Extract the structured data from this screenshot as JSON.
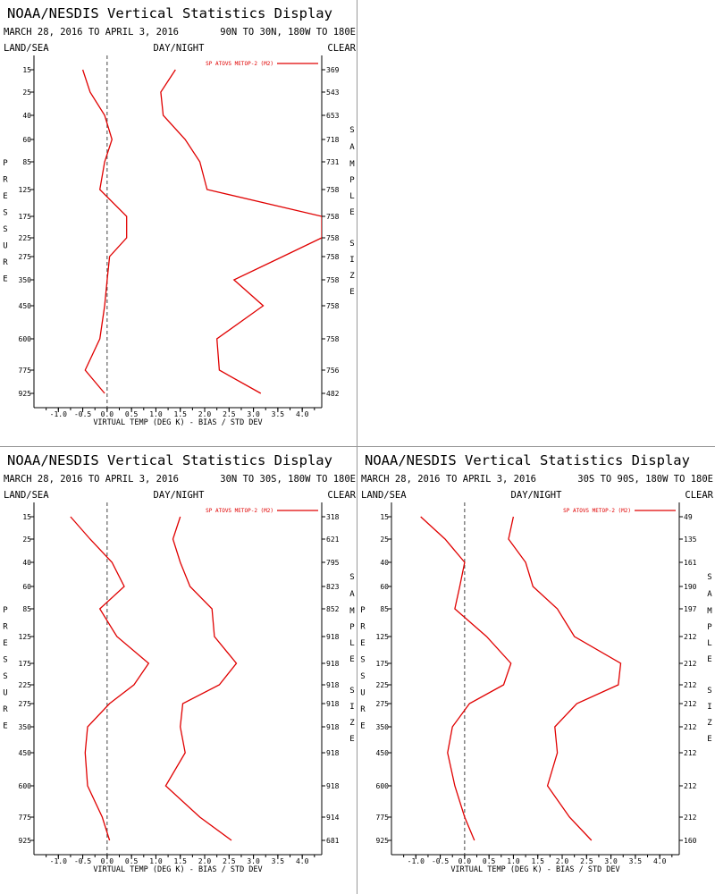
{
  "header": {
    "title": "NOAA/NESDIS Vertical Statistics Display",
    "left_label": "LAND/SEA",
    "center_label": "DAY/NIGHT",
    "right_label": "CLEAR",
    "y_axis_title": "PRESSURE",
    "right_axis_title": "SAMPLE SIZE",
    "x_axis_title": "VIRTUAL TEMP (DEG K) - BIAS / STD DEV"
  },
  "colors": {
    "series": "#e00000",
    "axis": "#000000",
    "zero_line": "#444444"
  },
  "chart_data": [
    {
      "type": "line",
      "date_range": "MARCH 28, 2016 TO APRIL 3, 2016",
      "region": "90N TO 30N, 180W TO 180E",
      "pressure_levels": [
        "15",
        "25",
        "40",
        "60",
        "85",
        "125",
        "175",
        "225",
        "275",
        "350",
        "450",
        "600",
        "775",
        "925"
      ],
      "x_ticks": [
        "-1.0",
        "-0.5",
        "0.0",
        "0.5",
        "1.0",
        "1.5",
        "2.0",
        "2.5",
        "3.0",
        "3.5",
        "4.0"
      ],
      "xlim": [
        -1.5,
        4.4
      ],
      "series": [
        {
          "name": "SP ATOVS METOP-2 (M2)",
          "kind": "bias",
          "values": [
            -0.5,
            -0.35,
            -0.05,
            0.1,
            -0.05,
            -0.15,
            0.4,
            0.4,
            0.05,
            0.0,
            -0.05,
            -0.15,
            -0.45,
            -0.05
          ]
        },
        {
          "name": "",
          "kind": "std_dev",
          "values": [
            1.4,
            1.1,
            1.15,
            1.6,
            1.9,
            2.05,
            4.4,
            4.4,
            3.6,
            2.6,
            3.2,
            2.25,
            2.3,
            3.15
          ]
        }
      ],
      "sample_size": [
        "369",
        "543",
        "653",
        "718",
        "731",
        "758",
        "758",
        "758",
        "758",
        "758",
        "758",
        "758",
        "756",
        "482"
      ]
    },
    {
      "type": "line",
      "date_range": "MARCH 28, 2016 TO APRIL 3, 2016",
      "region": "30N TO 30S, 180W TO 180E",
      "pressure_levels": [
        "15",
        "25",
        "40",
        "60",
        "85",
        "125",
        "175",
        "225",
        "275",
        "350",
        "450",
        "600",
        "775",
        "925"
      ],
      "x_ticks": [
        "-1.0",
        "-0.5",
        "0.0",
        "0.5",
        "1.0",
        "1.5",
        "2.0",
        "2.5",
        "3.0",
        "3.5",
        "4.0"
      ],
      "xlim": [
        -1.5,
        4.4
      ],
      "series": [
        {
          "name": "SP ATOVS METOP-2 (M2)",
          "kind": "bias",
          "values": [
            -0.75,
            -0.35,
            0.1,
            0.35,
            -0.15,
            0.2,
            0.85,
            0.55,
            0.05,
            -0.4,
            -0.45,
            -0.4,
            -0.1,
            0.05
          ]
        },
        {
          "name": "",
          "kind": "std_dev",
          "values": [
            1.5,
            1.35,
            1.5,
            1.7,
            2.15,
            2.2,
            2.65,
            2.3,
            1.55,
            1.5,
            1.6,
            1.2,
            1.9,
            2.55
          ]
        }
      ],
      "sample_size": [
        "318",
        "621",
        "795",
        "823",
        "852",
        "918",
        "918",
        "918",
        "918",
        "918",
        "918",
        "918",
        "914",
        "681"
      ]
    },
    {
      "type": "line",
      "date_range": "MARCH 28, 2016 TO APRIL 3, 2016",
      "region": "30S TO 90S, 180W TO 180E",
      "pressure_levels": [
        "15",
        "25",
        "40",
        "60",
        "85",
        "125",
        "175",
        "225",
        "275",
        "350",
        "450",
        "600",
        "775",
        "925"
      ],
      "x_ticks": [
        "-1.0",
        "-0.5",
        "0.0",
        "0.5",
        "1.0",
        "1.5",
        "2.0",
        "2.5",
        "3.0",
        "3.5",
        "4.0"
      ],
      "xlim": [
        -1.5,
        4.4
      ],
      "series": [
        {
          "name": "SP ATOVS METOP-2 (M2)",
          "kind": "bias",
          "values": [
            -0.9,
            -0.4,
            0.0,
            -0.1,
            -0.2,
            0.45,
            0.95,
            0.8,
            0.1,
            -0.25,
            -0.35,
            -0.2,
            0.0,
            0.2
          ]
        },
        {
          "name": "",
          "kind": "std_dev",
          "values": [
            1.0,
            0.9,
            1.25,
            1.4,
            1.9,
            2.25,
            3.2,
            3.15,
            2.3,
            1.85,
            1.9,
            1.7,
            2.15,
            2.6
          ]
        }
      ],
      "sample_size": [
        "49",
        "135",
        "161",
        "190",
        "197",
        "212",
        "212",
        "212",
        "212",
        "212",
        "212",
        "212",
        "212",
        "160"
      ]
    }
  ]
}
